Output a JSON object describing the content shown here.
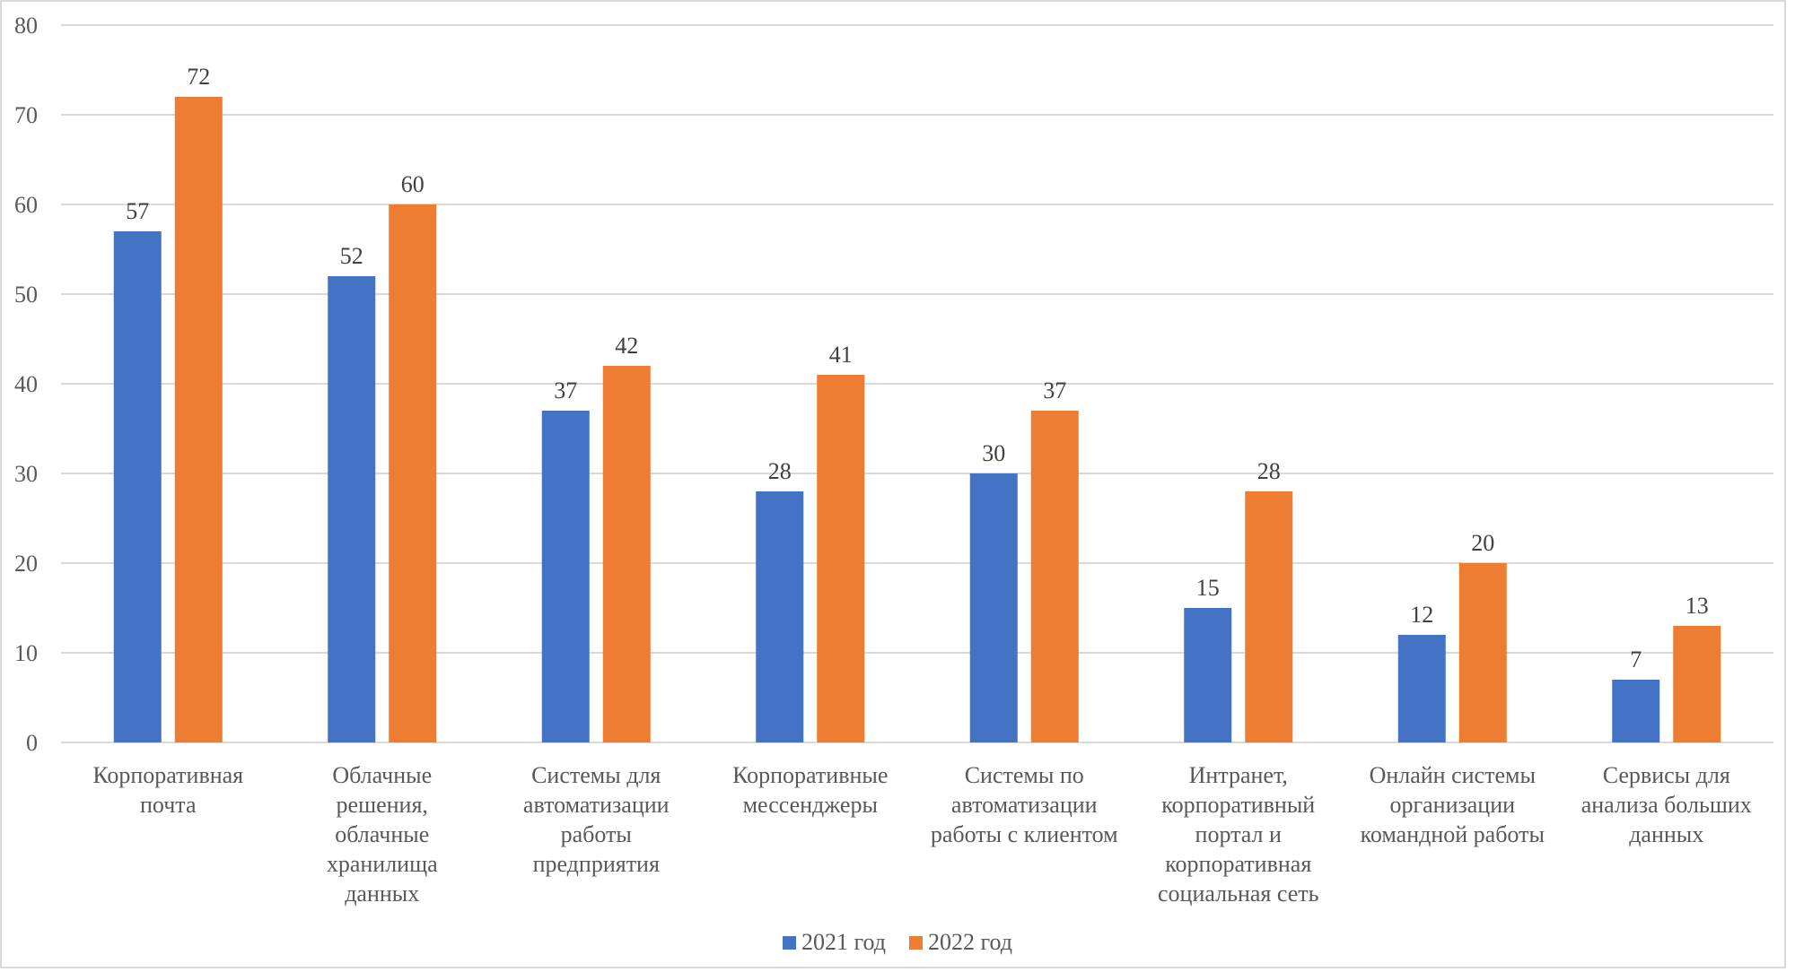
{
  "chart_data": {
    "type": "bar",
    "title": "",
    "xlabel": "",
    "ylabel": "",
    "ylim": [
      0,
      80
    ],
    "yticks": [
      0,
      10,
      20,
      30,
      40,
      50,
      60,
      70,
      80
    ],
    "grid": true,
    "legend_position": "bottom",
    "categories": [
      [
        "Корпоративная",
        "почта"
      ],
      [
        "Облачные",
        "решения,",
        "облачные",
        "хранилища",
        "данных"
      ],
      [
        "Системы для",
        "автоматизации",
        "работы",
        "предприятия"
      ],
      [
        "Корпоративные",
        "мессенджеры"
      ],
      [
        "Системы по",
        "автоматизации",
        "работы с клиентом"
      ],
      [
        "Интранет,",
        "корпоративный",
        "портал и",
        "корпоративная",
        "социальная сеть"
      ],
      [
        "Онлайн системы",
        "организации",
        "командной работы"
      ],
      [
        "Сервисы для",
        "анализа больших",
        "данных"
      ]
    ],
    "series": [
      {
        "name": "2021 год",
        "color": "#4472c4",
        "values": [
          57,
          52,
          37,
          28,
          30,
          15,
          12,
          7
        ]
      },
      {
        "name": "2022 год",
        "color": "#ed7d31",
        "values": [
          72,
          60,
          42,
          41,
          37,
          28,
          20,
          13
        ]
      }
    ]
  }
}
